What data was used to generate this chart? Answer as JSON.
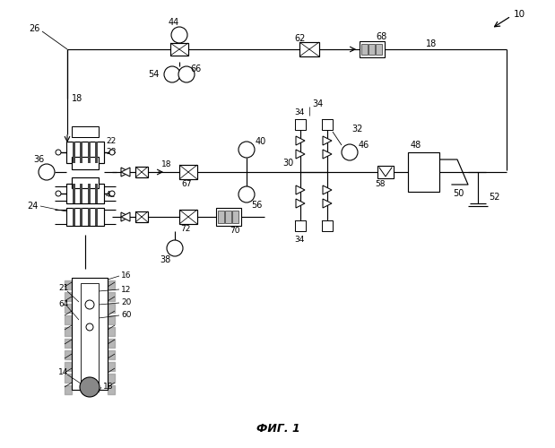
{
  "title": "ФИГ. 1",
  "bg_color": "#ffffff"
}
